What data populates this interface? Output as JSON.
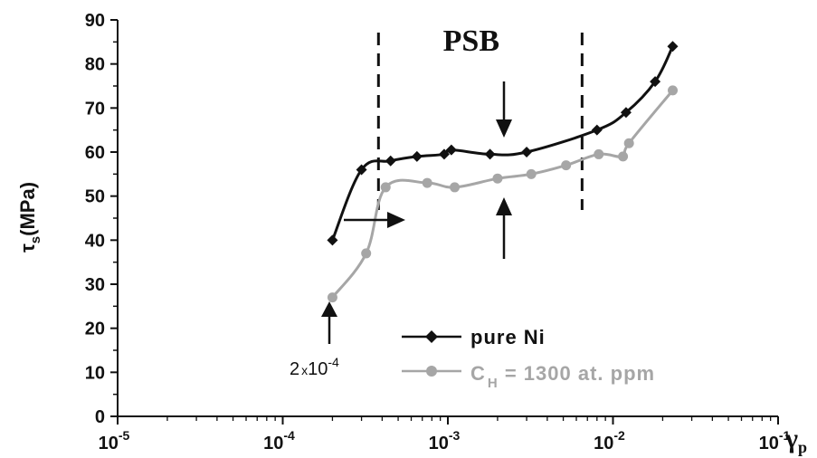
{
  "chart_data": {
    "type": "line",
    "title": "",
    "xlabel": "γ",
    "xlabel_sub": "p",
    "ylabel": "τ",
    "ylabel_sub": "s",
    "ylabel_unit": "(MPa)",
    "x_scale": "log",
    "xlim": [
      1e-05,
      0.1
    ],
    "ylim": [
      0,
      90
    ],
    "x_ticks": [
      {
        "base": "10",
        "exp": "-5"
      },
      {
        "base": "10",
        "exp": "-4"
      },
      {
        "base": "10",
        "exp": "-3"
      },
      {
        "base": "10",
        "exp": "-2"
      },
      {
        "base": "10",
        "exp": "-1"
      }
    ],
    "y_ticks": [
      "0",
      "10",
      "20",
      "30",
      "40",
      "50",
      "60",
      "70",
      "80",
      "90"
    ],
    "grid": false,
    "legend_position": "bottom-right",
    "series": [
      {
        "name": "pure Ni",
        "color": "#111111",
        "marker": "diamond",
        "x": [
          0.0002,
          0.0003,
          0.00045,
          0.00065,
          0.00095,
          0.00105,
          0.0018,
          0.003,
          0.008,
          0.012,
          0.018,
          0.023
        ],
        "y": [
          40,
          56,
          58,
          59,
          59.5,
          60.5,
          59.5,
          60,
          65,
          69,
          76,
          84
        ]
      },
      {
        "name_prefix": "C",
        "name_sub": "H",
        "name_suffix": " = 1300 at. ppm",
        "color": "#a6a6a6",
        "marker": "circle",
        "x": [
          0.0002,
          0.00032,
          0.00042,
          0.00075,
          0.0011,
          0.002,
          0.0032,
          0.0052,
          0.0082,
          0.0115,
          0.0125,
          0.023
        ],
        "y": [
          27,
          37,
          52,
          53,
          52,
          54,
          55,
          57,
          59.5,
          59,
          62,
          74
        ]
      }
    ],
    "annotations": {
      "region_label": "PSB",
      "region_bounds_x": [
        0.00038,
        0.0065
      ],
      "start_label_base": "2",
      "start_label_times": "x",
      "start_label_pow_base": "10",
      "start_label_exp": "-4"
    }
  }
}
